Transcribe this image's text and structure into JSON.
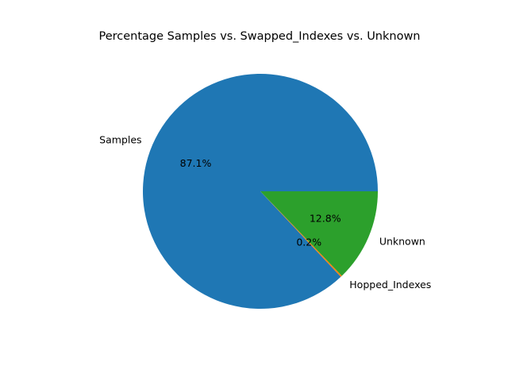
{
  "chart_data": {
    "type": "pie",
    "title": "Percentage Samples vs. Swapped_Indexes vs. Unknown",
    "slices": [
      {
        "label": "Samples",
        "value": 87.1,
        "pct_label": "87.1%",
        "color": "#1f77b4"
      },
      {
        "label": "Hopped_Indexes",
        "value": 0.2,
        "pct_label": "0.2%",
        "color": "#ff7f0e"
      },
      {
        "label": "Unknown",
        "value": 12.8,
        "pct_label": "12.8%",
        "color": "#2ca02c"
      }
    ],
    "start_angle_deg": 0,
    "direction": "counterclockwise",
    "legend": "none"
  }
}
